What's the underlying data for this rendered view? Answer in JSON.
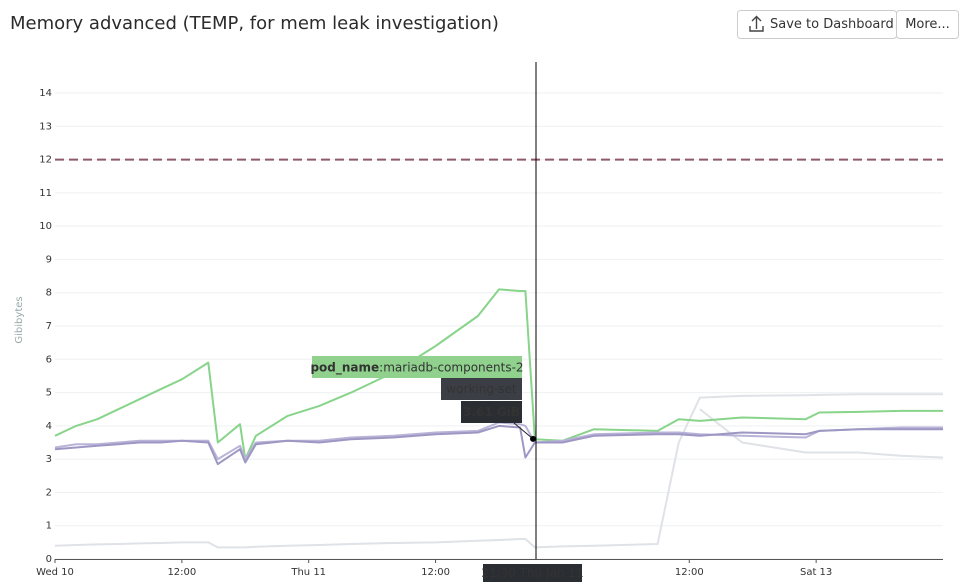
{
  "title": "Memory advanced (TEMP, for mem leak investigation)",
  "buttons": [
    "Save to Dashboard",
    "More..."
  ],
  "chart_data": {
    "type": "line",
    "y_label": "Gibibytes",
    "x": [
      0,
      2,
      4,
      6,
      8,
      10,
      12,
      14.5,
      15.4,
      17.5,
      18,
      19,
      22,
      25,
      28,
      32,
      36,
      40,
      42,
      44,
      44.5,
      45.4,
      48,
      51,
      57,
      59,
      61,
      65,
      71,
      72.3,
      76,
      80,
      84
    ],
    "xlim": [
      0,
      84
    ],
    "xticks": [
      {
        "value": 0,
        "label": "Wed 10"
      },
      {
        "value": 12,
        "label": "12:00"
      },
      {
        "value": 24,
        "label": "Thu 11"
      },
      {
        "value": 36,
        "label": "12:00"
      },
      {
        "value": 60,
        "label": "12:00"
      },
      {
        "value": 72,
        "label": "Sat 13"
      }
    ],
    "ylim": [
      0,
      14
    ],
    "yticks": [
      0,
      1,
      2,
      3,
      4,
      5,
      6,
      7,
      8,
      9,
      10,
      11,
      12,
      13,
      14
    ],
    "grid": true,
    "threshold": {
      "value": 12,
      "color": "#8c5a6a"
    },
    "series": [
      {
        "color": "#dfe2e6",
        "values": [
          0.4,
          0.42,
          0.44,
          0.45,
          0.47,
          0.48,
          0.5,
          0.5,
          0.35,
          0.35,
          0.35,
          0.37,
          0.4,
          0.42,
          0.45,
          0.48,
          0.5,
          0.55,
          0.57,
          0.6,
          0.6,
          0.35,
          0.38,
          0.4,
          0.45,
          3.5,
          4.85,
          4.9,
          4.92,
          4.93,
          4.95,
          4.95,
          4.95
        ]
      },
      {
        "color": "#dfe2e6",
        "values": [
          null,
          null,
          null,
          null,
          null,
          null,
          null,
          null,
          null,
          null,
          null,
          null,
          null,
          null,
          null,
          null,
          null,
          null,
          null,
          null,
          null,
          null,
          null,
          null,
          null,
          null,
          4.5,
          3.5,
          3.2,
          3.2,
          3.2,
          3.1,
          3.05
        ]
      },
      {
        "color": "#88d48a",
        "values": [
          3.7,
          4.0,
          4.2,
          4.5,
          4.8,
          5.1,
          5.4,
          5.9,
          3.5,
          4.05,
          3.0,
          3.7,
          4.3,
          4.6,
          5.0,
          5.6,
          6.4,
          7.3,
          8.1,
          8.05,
          8.05,
          3.6,
          3.55,
          3.9,
          3.85,
          4.2,
          4.15,
          4.25,
          4.2,
          4.4,
          4.42,
          4.45,
          4.45
        ]
      },
      {
        "color": "#b9b3d8",
        "values": [
          3.35,
          3.45,
          3.45,
          3.5,
          3.55,
          3.55,
          3.55,
          3.55,
          3.0,
          3.4,
          3.0,
          3.5,
          3.55,
          3.55,
          3.65,
          3.7,
          3.8,
          3.85,
          4.1,
          4.05,
          4.0,
          3.5,
          3.55,
          3.75,
          3.8,
          3.8,
          3.75,
          3.7,
          3.65,
          3.85,
          3.9,
          3.95,
          3.95
        ]
      },
      {
        "color": "#9d97c4",
        "values": [
          3.3,
          3.35,
          3.4,
          3.45,
          3.5,
          3.5,
          3.55,
          3.5,
          2.85,
          3.3,
          2.9,
          3.45,
          3.55,
          3.5,
          3.6,
          3.65,
          3.75,
          3.8,
          4.0,
          3.95,
          3.05,
          3.5,
          3.5,
          3.7,
          3.75,
          3.75,
          3.7,
          3.8,
          3.75,
          3.85,
          3.9,
          3.9,
          3.9
        ]
      }
    ],
    "tooltip": {
      "x": 45.5,
      "x_label": "21:30 Thu Jan 11",
      "tag_key": "pod_name",
      "tag_value": ":mariadb-components-2",
      "metric": "working-set",
      "value": 3.61,
      "value_label": "3.61 GiB"
    }
  }
}
